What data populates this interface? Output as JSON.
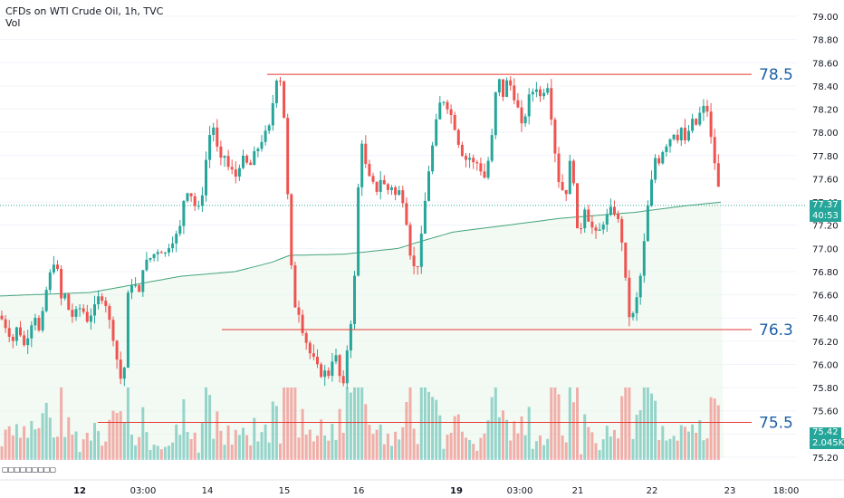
{
  "header": {
    "title": "CFDs on WTI Crude Oil, 1h, TVC",
    "indicator": "Vol"
  },
  "footer": {
    "logo_text": "▢▢▢▢▢▢▢▢▢"
  },
  "badges": {
    "price": "77.37",
    "countdown": "40:53",
    "vol_price": "75.42",
    "vol_amount": "2.045K"
  },
  "colors": {
    "up": "#26a69a",
    "down": "#ef5350",
    "level": "#e53935",
    "label": "#1b5fa6",
    "badge": "#26a69a",
    "ma": "#43a37a"
  },
  "chart_data": {
    "type": "candlestick",
    "title": "CFDs on WTI Crude Oil, 1h, TVC",
    "ylim": [
      75.2,
      79.0
    ],
    "y_ticks": [
      "79.00",
      "78.80",
      "78.60",
      "78.40",
      "78.20",
      "78.00",
      "77.80",
      "77.60",
      "77.40",
      "77.20",
      "77.00",
      "76.80",
      "76.60",
      "76.40",
      "76.20",
      "76.00",
      "75.80",
      "75.60",
      "75.40",
      "75.20"
    ],
    "x_ticks": [
      "12",
      "03:00",
      "14",
      "15",
      "16",
      "19",
      "03:00",
      "21",
      "22",
      "23",
      "18:00"
    ],
    "levels": [
      {
        "label": "78.5",
        "value": 78.5
      },
      {
        "label": "76.3",
        "value": 76.3
      },
      {
        "label": "75.5",
        "value": 75.5
      }
    ],
    "last_price": 77.37,
    "close_path": [
      [
        0,
        76.42
      ],
      [
        8,
        76.3
      ],
      [
        14,
        76.2
      ],
      [
        20,
        76.35
      ],
      [
        26,
        76.15
      ],
      [
        32,
        76.28
      ],
      [
        38,
        76.45
      ],
      [
        44,
        76.25
      ],
      [
        50,
        76.6
      ],
      [
        56,
        76.8
      ],
      [
        62,
        76.95
      ],
      [
        66,
        76.55
      ],
      [
        72,
        76.6
      ],
      [
        78,
        76.4
      ],
      [
        84,
        76.45
      ],
      [
        90,
        76.5
      ],
      [
        96,
        76.38
      ],
      [
        104,
        76.48
      ],
      [
        110,
        76.6
      ],
      [
        116,
        76.55
      ],
      [
        120,
        76.4
      ],
      [
        126,
        76.2
      ],
      [
        130,
        76.0
      ],
      [
        134,
        75.85
      ],
      [
        138,
        76.0
      ],
      [
        142,
        76.7
      ],
      [
        148,
        76.7
      ],
      [
        154,
        76.6
      ],
      [
        158,
        76.85
      ],
      [
        164,
        76.9
      ],
      [
        170,
        76.95
      ],
      [
        176,
        77.0
      ],
      [
        182,
        76.95
      ],
      [
        188,
        77.05
      ],
      [
        194,
        77.1
      ],
      [
        200,
        77.2
      ],
      [
        204,
        77.5
      ],
      [
        208,
        77.5
      ],
      [
        212,
        77.45
      ],
      [
        218,
        77.3
      ],
      [
        224,
        77.5
      ],
      [
        228,
        77.8
      ],
      [
        232,
        78.0
      ],
      [
        236,
        78.05
      ],
      [
        240,
        77.85
      ],
      [
        244,
        77.75
      ],
      [
        248,
        77.8
      ],
      [
        252,
        77.7
      ],
      [
        258,
        77.65
      ],
      [
        262,
        77.6
      ],
      [
        266,
        77.8
      ],
      [
        270,
        77.75
      ],
      [
        276,
        77.7
      ],
      [
        280,
        77.8
      ],
      [
        284,
        77.85
      ],
      [
        290,
        77.95
      ],
      [
        294,
        78.0
      ],
      [
        298,
        78.05
      ],
      [
        302,
        78.3
      ],
      [
        306,
        78.5
      ],
      [
        310,
        78.45
      ],
      [
        314,
        78.1
      ],
      [
        318,
        77.4
      ],
      [
        322,
        76.8
      ],
      [
        326,
        76.5
      ],
      [
        330,
        76.45
      ],
      [
        334,
        76.3
      ],
      [
        338,
        76.2
      ],
      [
        342,
        76.1
      ],
      [
        346,
        76.05
      ],
      [
        352,
        75.95
      ],
      [
        356,
        75.9
      ],
      [
        360,
        75.95
      ],
      [
        364,
        75.9
      ],
      [
        368,
        76.1
      ],
      [
        372,
        76.05
      ],
      [
        376,
        75.85
      ],
      [
        380,
        75.8
      ],
      [
        384,
        76.2
      ],
      [
        388,
        76.4
      ],
      [
        392,
        76.8
      ],
      [
        396,
        77.6
      ],
      [
        400,
        77.95
      ],
      [
        404,
        77.7
      ],
      [
        408,
        77.6
      ],
      [
        412,
        77.55
      ],
      [
        416,
        77.5
      ],
      [
        420,
        77.6
      ],
      [
        424,
        77.55
      ],
      [
        428,
        77.5
      ],
      [
        432,
        77.55
      ],
      [
        436,
        77.45
      ],
      [
        440,
        77.5
      ],
      [
        444,
        77.45
      ],
      [
        448,
        77.3
      ],
      [
        452,
        77.0
      ],
      [
        456,
        76.85
      ],
      [
        460,
        76.8
      ],
      [
        464,
        77.0
      ],
      [
        468,
        77.3
      ],
      [
        472,
        77.6
      ],
      [
        476,
        77.8
      ],
      [
        480,
        78.0
      ],
      [
        484,
        78.2
      ],
      [
        488,
        78.3
      ],
      [
        492,
        78.25
      ],
      [
        496,
        78.2
      ],
      [
        500,
        78.1
      ],
      [
        504,
        78.0
      ],
      [
        508,
        77.85
      ],
      [
        512,
        77.8
      ],
      [
        516,
        77.75
      ],
      [
        520,
        77.8
      ],
      [
        524,
        77.7
      ],
      [
        528,
        77.75
      ],
      [
        532,
        77.65
      ],
      [
        536,
        77.6
      ],
      [
        540,
        77.8
      ],
      [
        544,
        78.0
      ],
      [
        548,
        78.4
      ],
      [
        552,
        78.45
      ],
      [
        556,
        78.3
      ],
      [
        560,
        78.45
      ],
      [
        564,
        78.4
      ],
      [
        568,
        78.3
      ],
      [
        572,
        78.2
      ],
      [
        576,
        78.05
      ],
      [
        580,
        78.15
      ],
      [
        584,
        78.3
      ],
      [
        588,
        78.35
      ],
      [
        592,
        78.4
      ],
      [
        596,
        78.3
      ],
      [
        600,
        78.35
      ],
      [
        604,
        78.45
      ],
      [
        608,
        78.2
      ],
      [
        612,
        77.9
      ],
      [
        616,
        77.6
      ],
      [
        620,
        77.55
      ],
      [
        624,
        77.4
      ],
      [
        628,
        77.7
      ],
      [
        632,
        77.8
      ],
      [
        636,
        77.2
      ],
      [
        640,
        77.05
      ],
      [
        644,
        77.4
      ],
      [
        648,
        77.3
      ],
      [
        652,
        77.2
      ],
      [
        656,
        77.15
      ],
      [
        660,
        77.1
      ],
      [
        664,
        77.2
      ],
      [
        668,
        77.25
      ],
      [
        672,
        77.3
      ],
      [
        676,
        77.35
      ],
      [
        680,
        77.3
      ],
      [
        684,
        77.2
      ],
      [
        688,
        77.0
      ],
      [
        692,
        76.6
      ],
      [
        696,
        76.35
      ],
      [
        700,
        76.45
      ],
      [
        704,
        76.6
      ],
      [
        708,
        76.8
      ],
      [
        712,
        77.1
      ],
      [
        716,
        77.4
      ],
      [
        720,
        77.6
      ],
      [
        724,
        77.8
      ],
      [
        728,
        77.75
      ],
      [
        732,
        77.85
      ],
      [
        736,
        77.9
      ],
      [
        740,
        77.95
      ],
      [
        744,
        78.0
      ],
      [
        748,
        77.95
      ],
      [
        752,
        78.05
      ],
      [
        756,
        77.9
      ],
      [
        760,
        78.0
      ],
      [
        764,
        78.1
      ],
      [
        768,
        78.05
      ],
      [
        772,
        78.15
      ],
      [
        776,
        78.2
      ],
      [
        780,
        78.25
      ],
      [
        784,
        78.0
      ],
      [
        788,
        77.8
      ],
      [
        792,
        77.6
      ],
      [
        796,
        77.35
      ],
      [
        799,
        77.37
      ]
    ],
    "ma_path": [
      [
        0,
        76.59
      ],
      [
        100,
        76.62
      ],
      [
        200,
        76.76
      ],
      [
        260,
        76.8
      ],
      [
        300,
        76.88
      ],
      [
        320,
        76.94
      ],
      [
        380,
        76.95
      ],
      [
        440,
        77.0
      ],
      [
        460,
        77.05
      ],
      [
        500,
        77.14
      ],
      [
        560,
        77.2
      ],
      [
        620,
        77.26
      ],
      [
        700,
        77.31
      ],
      [
        760,
        77.37
      ],
      [
        799,
        77.4
      ]
    ],
    "volume": {
      "ylim": [
        0,
        13000
      ],
      "last": 2045
    }
  }
}
